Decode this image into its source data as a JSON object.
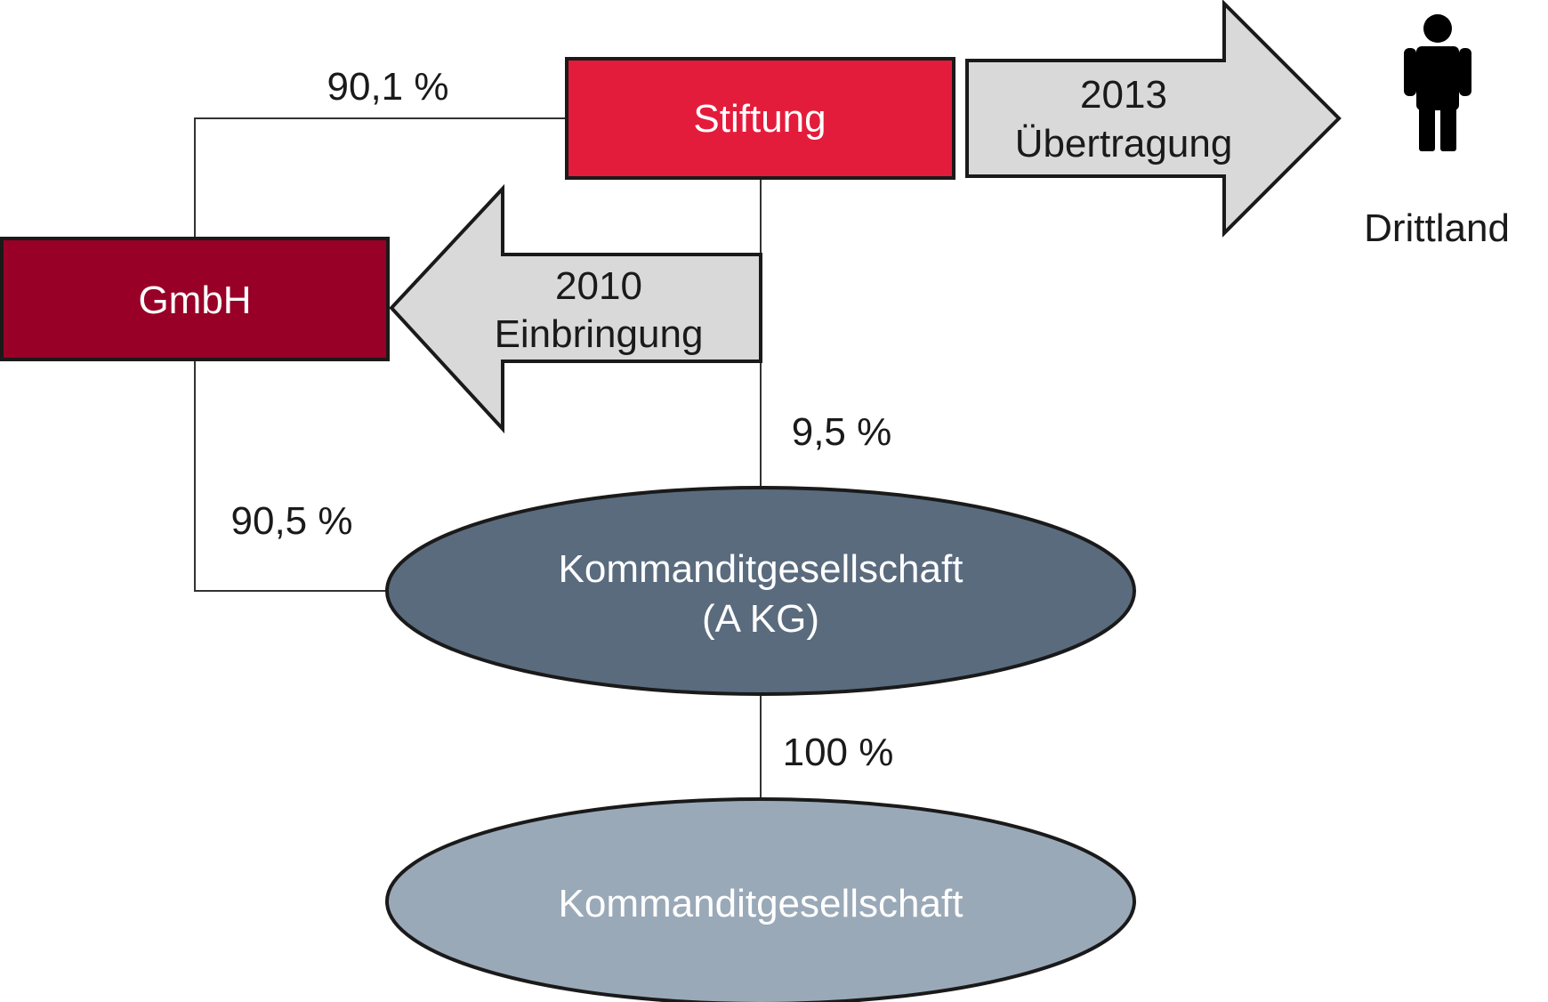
{
  "nodes": {
    "stiftung": {
      "label": "Stiftung",
      "fill": "#e41c3c"
    },
    "gmbh": {
      "label": "GmbH",
      "fill": "#990027"
    },
    "akg": {
      "line1": "Kommanditgesellschaft",
      "line2": "(A KG)",
      "fill": "#5a6b7e"
    },
    "kg": {
      "label": "Kommanditgesellschaft",
      "fill": "#9aa9b8"
    }
  },
  "arrows": {
    "uebertragung": {
      "year": "2013",
      "label": "Übertragung",
      "fill": "#d9d9d9"
    },
    "einbringung": {
      "year": "2010",
      "label": "Einbringung",
      "fill": "#d9d9d9"
    }
  },
  "shares": {
    "stiftung_gmbh": "90,1 %",
    "stiftung_akg": "9,5 %",
    "gmbh_akg": "90,5 %",
    "akg_kg": "100 %"
  },
  "person": {
    "icon": "person-icon",
    "label": "Drittland"
  },
  "colors": {
    "box_text": "#ffffff",
    "outline": "#1a1a1a",
    "text": "#1a1a1a"
  }
}
